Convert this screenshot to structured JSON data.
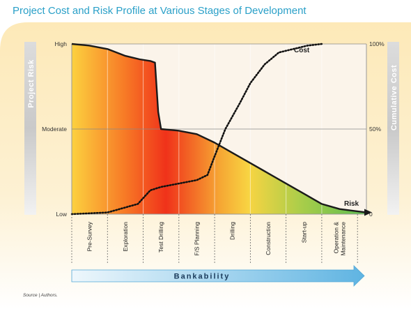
{
  "chart_data": {
    "type": "area",
    "title": "Project Cost and Risk Profile at Various Stages of Development",
    "left_axis": {
      "label": "Project Risk",
      "ticks": [
        "Low",
        "Moderate",
        "High"
      ]
    },
    "right_axis": {
      "label": "Cumulative Cost",
      "ticks": [
        "0",
        "50%",
        "100%"
      ]
    },
    "categories": [
      "Pre-Survey",
      "Exploration",
      "Test Drilling",
      "F/S Planning",
      "Drilling",
      "Construction",
      "Start-up",
      "Operation & Maintenance"
    ],
    "series": [
      {
        "name": "Risk",
        "axis": "left",
        "style": "solid",
        "x": [
          0,
          0.5,
          1.0,
          1.5,
          1.9,
          2.2,
          2.33,
          2.42,
          2.5,
          3.0,
          3.5,
          4.0,
          4.5,
          5.0,
          5.5,
          6.0,
          6.5,
          7.0,
          7.5,
          8.25
        ],
        "y": [
          100,
          99,
          97,
          93,
          91,
          90,
          89,
          60,
          50,
          49,
          47,
          42,
          36,
          30,
          24,
          18,
          12,
          6,
          3,
          1
        ]
      },
      {
        "name": "Cost",
        "axis": "right",
        "style": "dotted",
        "x": [
          0,
          1.0,
          1.85,
          2.2,
          2.5,
          3.0,
          3.5,
          3.8,
          4.0,
          4.3,
          4.7,
          5.0,
          5.4,
          5.8,
          6.2,
          6.6,
          7.0
        ],
        "y": [
          0,
          1,
          6,
          14,
          16,
          18,
          20,
          23,
          34,
          50,
          65,
          77,
          88,
          95,
          97,
          99,
          100
        ]
      }
    ],
    "annotations": [
      "Cost",
      "Risk"
    ],
    "bottom_arrow": "Bankability",
    "colors": {
      "gradient": [
        "#fcd34a",
        "#f03a1c",
        "#f8d040",
        "#6cc24a"
      ],
      "title": "#2aa0c8"
    }
  },
  "source": "Source | Authors."
}
